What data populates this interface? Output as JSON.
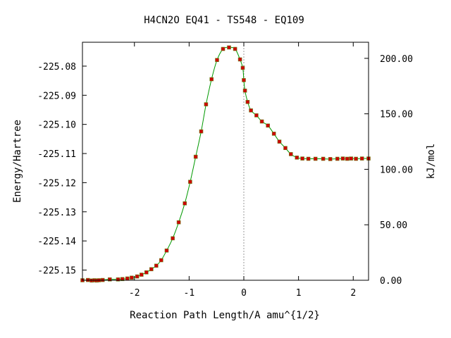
{
  "chart_data": {
    "type": "line",
    "title": "H4CN2O   EQ41 - TS548 - EQ109",
    "xlabel": "Reaction Path Length/A amu^{1/2}",
    "ylabel": "Energy/Hartree",
    "y2label": "kJ/mol",
    "xlim": [
      -2.95,
      2.28
    ],
    "ylim": [
      -225.1535,
      -225.0718
    ],
    "y2lim": [
      0.0,
      214.5
    ],
    "grid": false,
    "x_ticks": [
      -2,
      -1,
      0,
      1,
      2
    ],
    "x_tick_labels": [
      "-2",
      "-1",
      "0",
      "1",
      "2"
    ],
    "y_ticks": [
      -225.08,
      -225.09,
      -225.1,
      -225.11,
      -225.12,
      -225.13,
      -225.14,
      -225.15
    ],
    "y_tick_labels": [
      "-225.08",
      "-225.09",
      "-225.10",
      "-225.11",
      "-225.12",
      "-225.13",
      "-225.14",
      "-225.15"
    ],
    "y2_ticks": [
      200,
      150,
      100,
      50,
      0
    ],
    "y2_tick_labels": [
      "200.00",
      "150.00",
      "100.00",
      "50.00",
      "0.00"
    ],
    "ts_marker_x": 0.0,
    "series": [
      {
        "color": "#009900",
        "marker_color": "#cc0000",
        "x": [
          -2.95,
          -2.85,
          -2.78,
          -2.73,
          -2.69,
          -2.65,
          -2.58,
          -2.45,
          -2.3,
          -2.22,
          -2.13,
          -2.05,
          -1.95,
          -1.87,
          -1.78,
          -1.69,
          -1.6,
          -1.51,
          -1.41,
          -1.3,
          -1.19,
          -1.08,
          -0.98,
          -0.88,
          -0.78,
          -0.69,
          -0.59,
          -0.49,
          -0.38,
          -0.27,
          -0.16,
          -0.07,
          -0.02,
          0.0,
          0.02,
          0.07,
          0.13,
          0.23,
          0.33,
          0.44,
          0.55,
          0.65,
          0.76,
          0.86,
          0.97,
          1.07,
          1.18,
          1.31,
          1.45,
          1.58,
          1.71,
          1.81,
          1.89,
          1.96,
          2.05,
          2.16,
          2.28
        ],
        "y": [
          -225.1535,
          -225.1534,
          -225.1536,
          -225.1535,
          -225.1536,
          -225.1535,
          -225.1534,
          -225.1532,
          -225.1532,
          -225.1531,
          -225.1529,
          -225.1526,
          -225.1522,
          -225.1516,
          -225.1508,
          -225.1497,
          -225.1485,
          -225.1466,
          -225.1433,
          -225.1391,
          -225.1336,
          -225.1271,
          -225.1197,
          -225.1111,
          -225.1024,
          -225.0931,
          -225.0845,
          -225.0779,
          -225.0741,
          -225.0736,
          -225.0741,
          -225.0777,
          -225.0806,
          -225.0848,
          -225.0884,
          -225.0923,
          -225.0952,
          -225.0969,
          -225.099,
          -225.1004,
          -225.1032,
          -225.1059,
          -225.1081,
          -225.1102,
          -225.1114,
          -225.1117,
          -225.1118,
          -225.1118,
          -225.1118,
          -225.1119,
          -225.1118,
          -225.1117,
          -225.1118,
          -225.1117,
          -225.1118,
          -225.1117,
          -225.1117
        ]
      }
    ]
  }
}
